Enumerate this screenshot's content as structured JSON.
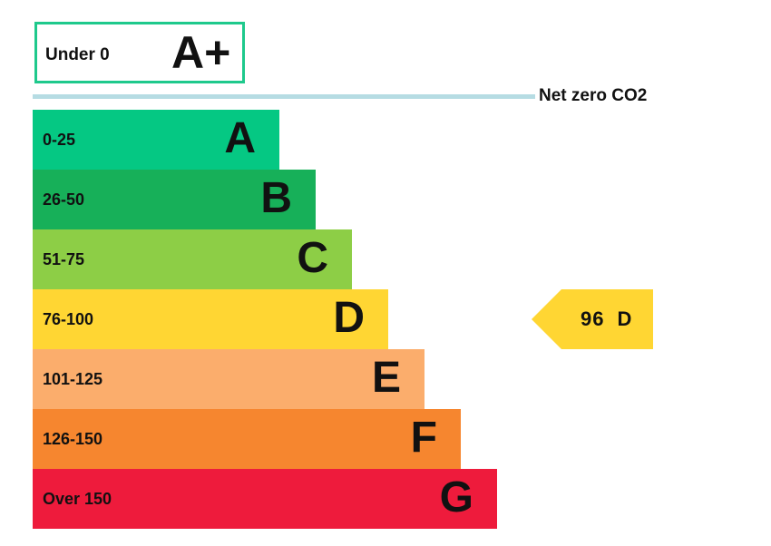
{
  "chart_data": {
    "type": "bar",
    "top_band": {
      "range": "Under 0",
      "letter": "A+",
      "color": "#1ec98c"
    },
    "net_zero_label": "Net zero CO2",
    "bands": [
      {
        "range": "0-25",
        "letter": "A",
        "color": "#05c883",
        "max": 25
      },
      {
        "range": "26-50",
        "letter": "B",
        "color": "#17b059",
        "max": 50
      },
      {
        "range": "51-75",
        "letter": "C",
        "color": "#8dce46",
        "max": 75
      },
      {
        "range": "76-100",
        "letter": "D",
        "color": "#ffd633",
        "max": 100
      },
      {
        "range": "101-125",
        "letter": "E",
        "color": "#fbad6c",
        "max": 125
      },
      {
        "range": "126-150",
        "letter": "F",
        "color": "#f6862f",
        "max": 150
      },
      {
        "range": "Over 150",
        "letter": "G",
        "color": "#ee1b3c",
        "max": 175
      }
    ],
    "current": {
      "value": 96,
      "rating": "D",
      "color": "#ffd633"
    }
  }
}
